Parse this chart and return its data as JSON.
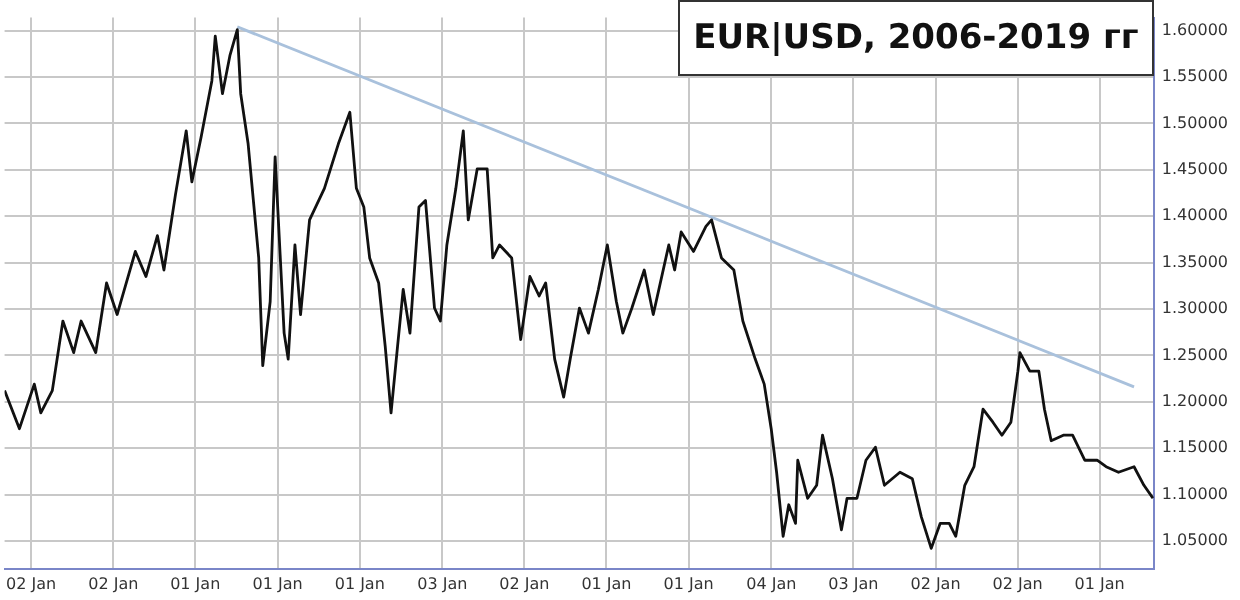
{
  "chart_data": {
    "type": "line",
    "title": "EUR|USD, 2006-2019 гг",
    "grid": true,
    "legend": false,
    "marker": "none",
    "line_style": "solid",
    "xlim": [
      "2005-09-06",
      "2019-08-30"
    ],
    "ylim": [
      1.02,
      1.614
    ],
    "xticks": [
      {
        "value": "2006-01-02",
        "label": "02 Jan"
      },
      {
        "value": "2007-01-02",
        "label": "02 Jan"
      },
      {
        "value": "2008-01-01",
        "label": "01 Jan"
      },
      {
        "value": "2009-01-01",
        "label": "01 Jan"
      },
      {
        "value": "2010-01-01",
        "label": "01 Jan"
      },
      {
        "value": "2011-01-03",
        "label": "03 Jan"
      },
      {
        "value": "2012-01-02",
        "label": "02 Jan"
      },
      {
        "value": "2013-01-01",
        "label": "01 Jan"
      },
      {
        "value": "2014-01-01",
        "label": "01 Jan"
      },
      {
        "value": "2015-01-04",
        "label": "04 Jan"
      },
      {
        "value": "2016-01-03",
        "label": "03 Jan"
      },
      {
        "value": "2017-01-02",
        "label": "02 Jan"
      },
      {
        "value": "2018-01-02",
        "label": "02 Jan"
      },
      {
        "value": "2019-01-01",
        "label": "01 Jan"
      }
    ],
    "yticks": [
      {
        "value": 1.05,
        "label": "1.05000"
      },
      {
        "value": 1.1,
        "label": "1.10000"
      },
      {
        "value": 1.15,
        "label": "1.15000"
      },
      {
        "value": 1.2,
        "label": "1.20000"
      },
      {
        "value": 1.25,
        "label": "1.25000"
      },
      {
        "value": 1.3,
        "label": "1.30000"
      },
      {
        "value": 1.35,
        "label": "1.35000"
      },
      {
        "value": 1.4,
        "label": "1.40000"
      },
      {
        "value": 1.45,
        "label": "1.45000"
      },
      {
        "value": 1.5,
        "label": "1.50000"
      },
      {
        "value": 1.55,
        "label": "1.55000"
      },
      {
        "value": 1.6,
        "label": "1.60000"
      }
    ],
    "series": [
      {
        "color": "#111111",
        "x": [
          "2005-09-06",
          "2005-11-11",
          "2006-01-16",
          "2006-02-14",
          "2006-04-06",
          "2006-05-23",
          "2006-07-10",
          "2006-08-12",
          "2006-10-16",
          "2006-12-03",
          "2007-01-19",
          "2007-04-10",
          "2007-05-27",
          "2007-07-17",
          "2007-08-15",
          "2007-10-05",
          "2007-11-22",
          "2007-12-17",
          "2008-01-27",
          "2008-03-15",
          "2008-03-30",
          "2008-05-01",
          "2008-06-03",
          "2008-07-06",
          "2008-07-21",
          "2008-08-23",
          "2008-10-09",
          "2008-10-27",
          "2008-11-29",
          "2008-12-21",
          "2009-01-30",
          "2009-02-17",
          "2009-03-19",
          "2009-04-13",
          "2009-05-23",
          "2009-07-28",
          "2009-09-28",
          "2009-11-18",
          "2009-12-17",
          "2010-01-19",
          "2010-02-14",
          "2010-03-26",
          "2010-04-24",
          "2010-05-20",
          "2010-06-18",
          "2010-07-13",
          "2010-08-12",
          "2010-09-21",
          "2010-10-20",
          "2010-11-29",
          "2010-12-25",
          "2011-01-23",
          "2011-03-04",
          "2011-04-06",
          "2011-04-28",
          "2011-06-07",
          "2011-07-21",
          "2011-08-15",
          "2011-09-14",
          "2011-11-07",
          "2011-12-17",
          "2012-01-27",
          "2012-03-08",
          "2012-04-06",
          "2012-05-16",
          "2012-06-25",
          "2012-07-24",
          "2012-09-03",
          "2012-10-13",
          "2012-11-26",
          "2013-01-05",
          "2013-02-14",
          "2013-03-15",
          "2013-04-24",
          "2013-06-18",
          "2013-07-28",
          "2013-10-05",
          "2013-10-31",
          "2013-11-29",
          "2014-01-23",
          "2014-03-19",
          "2014-04-13",
          "2014-05-27",
          "2014-07-21",
          "2014-08-30",
          "2014-10-24",
          "2014-12-03",
          "2015-01-03",
          "2015-01-27",
          "2015-02-25",
          "2015-03-22",
          "2015-04-21",
          "2015-05-01",
          "2015-06-14",
          "2015-07-24",
          "2015-08-19",
          "2015-10-02",
          "2015-11-11",
          "2015-12-06",
          "2016-01-19",
          "2016-02-28",
          "2016-04-10",
          "2016-05-20",
          "2016-07-28",
          "2016-09-21",
          "2016-10-31",
          "2016-12-14",
          "2017-01-23",
          "2017-03-04",
          "2017-04-02",
          "2017-05-12",
          "2017-06-22",
          "2017-08-01",
          "2017-09-14",
          "2017-10-24",
          "2017-12-03",
          "2018-01-03",
          "2018-01-12",
          "2018-02-25",
          "2018-04-06",
          "2018-05-01",
          "2018-05-31",
          "2018-07-24",
          "2018-09-03",
          "2018-10-27",
          "2018-12-21",
          "2019-01-30",
          "2019-03-26",
          "2019-06-03",
          "2019-07-17",
          "2019-08-26"
        ],
        "values": [
          1.212,
          1.171,
          1.219,
          1.188,
          1.212,
          1.287,
          1.253,
          1.287,
          1.253,
          1.328,
          1.294,
          1.362,
          1.335,
          1.379,
          1.342,
          1.423,
          1.492,
          1.437,
          1.485,
          1.546,
          1.594,
          1.532,
          1.573,
          1.601,
          1.532,
          1.478,
          1.355,
          1.239,
          1.308,
          1.464,
          1.274,
          1.246,
          1.369,
          1.294,
          1.396,
          1.43,
          1.478,
          1.512,
          1.43,
          1.41,
          1.355,
          1.328,
          1.26,
          1.188,
          1.26,
          1.321,
          1.274,
          1.41,
          1.417,
          1.301,
          1.287,
          1.369,
          1.43,
          1.492,
          1.396,
          1.451,
          1.451,
          1.355,
          1.369,
          1.355,
          1.267,
          1.335,
          1.314,
          1.328,
          1.246,
          1.205,
          1.246,
          1.301,
          1.274,
          1.321,
          1.369,
          1.308,
          1.274,
          1.301,
          1.342,
          1.294,
          1.369,
          1.342,
          1.383,
          1.362,
          1.389,
          1.396,
          1.355,
          1.342,
          1.287,
          1.246,
          1.219,
          1.171,
          1.124,
          1.055,
          1.089,
          1.069,
          1.137,
          1.096,
          1.11,
          1.164,
          1.117,
          1.062,
          1.096,
          1.096,
          1.137,
          1.151,
          1.11,
          1.124,
          1.117,
          1.076,
          1.042,
          1.069,
          1.069,
          1.055,
          1.11,
          1.13,
          1.192,
          1.178,
          1.164,
          1.178,
          1.233,
          1.253,
          1.233,
          1.233,
          1.192,
          1.158,
          1.164,
          1.164,
          1.137,
          1.137,
          1.13,
          1.124,
          1.13,
          1.11,
          1.096
        ]
      },
      {
        "color": "#a9c1dc",
        "x": [
          "2008-07-06",
          "2019-06-03"
        ],
        "values": [
          1.604,
          1.216
        ]
      }
    ]
  }
}
